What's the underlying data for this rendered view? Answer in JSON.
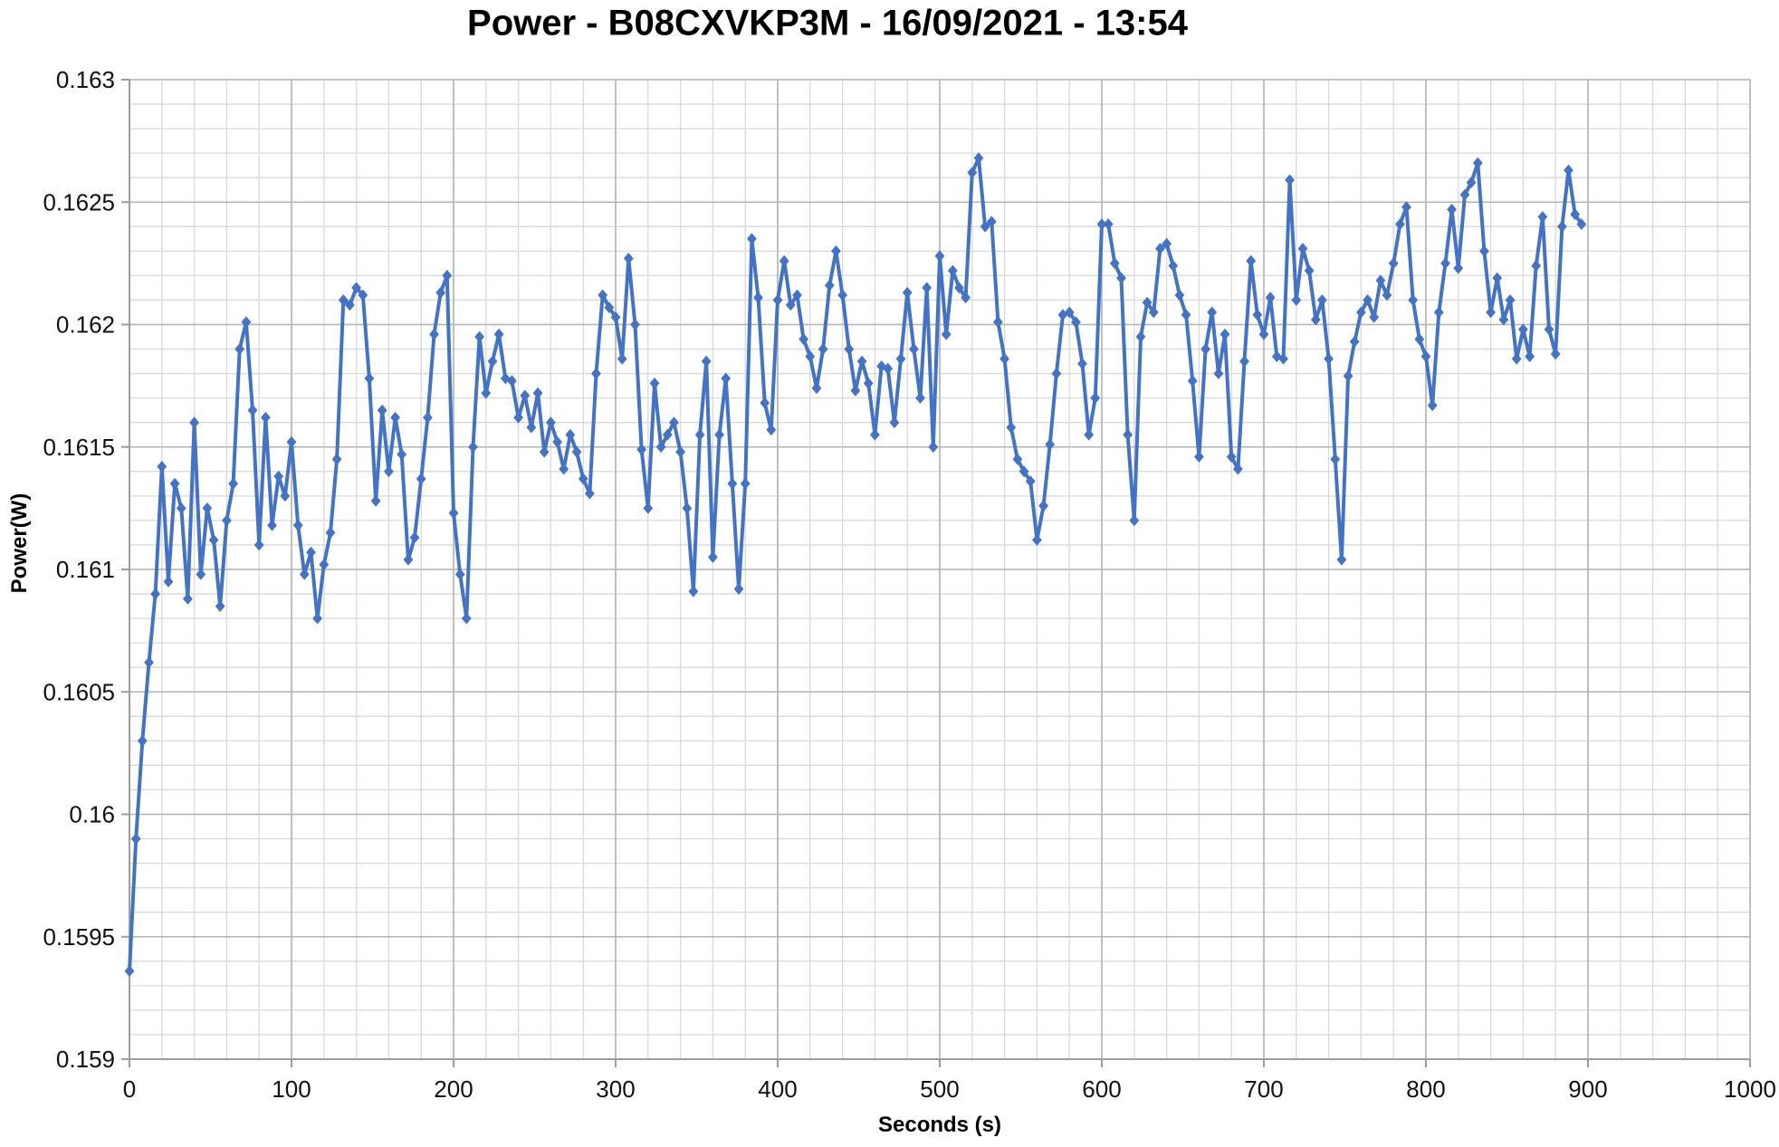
{
  "title": "Power - B08CXVKP3M - 16/09/2021 - 13:54",
  "chart_data": {
    "type": "line",
    "title": "Power - B08CXVKP3M - 16/09/2021 - 13:54",
    "xlabel": "Seconds (s)",
    "ylabel": "Power(W)",
    "grid": true,
    "legend": "none",
    "xlim": [
      0,
      1000
    ],
    "ylim": [
      0.159,
      0.163
    ],
    "x_ticks": [
      0,
      100,
      200,
      300,
      400,
      500,
      600,
      700,
      800,
      900,
      1000
    ],
    "y_ticks": [
      0.159,
      0.1595,
      0.16,
      0.1605,
      0.161,
      0.1615,
      0.162,
      0.1625,
      0.163
    ],
    "x_minor_step": 20,
    "y_minor_step": 0.0001,
    "series": [
      {
        "name": "Power",
        "marker": "diamond",
        "x_start": 0,
        "x_step": 4,
        "values": [
          0.15936,
          0.1599,
          0.1603,
          0.16062,
          0.1609,
          0.16142,
          0.16095,
          0.16135,
          0.16125,
          0.16088,
          0.1616,
          0.16098,
          0.16125,
          0.16112,
          0.16085,
          0.1612,
          0.16135,
          0.1619,
          0.16201,
          0.16165,
          0.1611,
          0.16162,
          0.16118,
          0.16138,
          0.1613,
          0.16152,
          0.16118,
          0.16098,
          0.16107,
          0.1608,
          0.16102,
          0.16115,
          0.16145,
          0.1621,
          0.16208,
          0.16215,
          0.16212,
          0.16178,
          0.16128,
          0.16165,
          0.1614,
          0.16162,
          0.16147,
          0.16104,
          0.16113,
          0.16137,
          0.16162,
          0.16196,
          0.16213,
          0.1622,
          0.16123,
          0.16098,
          0.1608,
          0.1615,
          0.16195,
          0.16172,
          0.16185,
          0.16196,
          0.16178,
          0.16177,
          0.16162,
          0.16171,
          0.16158,
          0.16172,
          0.16148,
          0.1616,
          0.16152,
          0.16141,
          0.16155,
          0.16148,
          0.16137,
          0.16131,
          0.1618,
          0.16212,
          0.16207,
          0.16203,
          0.16186,
          0.16227,
          0.162,
          0.16149,
          0.16125,
          0.16176,
          0.1615,
          0.16155,
          0.1616,
          0.16148,
          0.16125,
          0.16091,
          0.16155,
          0.16185,
          0.16105,
          0.16155,
          0.16178,
          0.16135,
          0.16092,
          0.16135,
          0.16235,
          0.16211,
          0.16168,
          0.16157,
          0.1621,
          0.16226,
          0.16208,
          0.16212,
          0.16194,
          0.16187,
          0.16174,
          0.1619,
          0.16216,
          0.1623,
          0.16212,
          0.1619,
          0.16173,
          0.16185,
          0.16176,
          0.16155,
          0.16183,
          0.16182,
          0.1616,
          0.16186,
          0.16213,
          0.1619,
          0.1617,
          0.16215,
          0.1615,
          0.16228,
          0.16196,
          0.16222,
          0.16215,
          0.16211,
          0.16262,
          0.16268,
          0.1624,
          0.16242,
          0.16201,
          0.16186,
          0.16158,
          0.16145,
          0.1614,
          0.16136,
          0.16112,
          0.16126,
          0.16151,
          0.1618,
          0.16204,
          0.16205,
          0.16201,
          0.16184,
          0.16155,
          0.1617,
          0.16241,
          0.16241,
          0.16225,
          0.16219,
          0.16155,
          0.1612,
          0.16195,
          0.16209,
          0.16205,
          0.16231,
          0.16233,
          0.16224,
          0.16212,
          0.16204,
          0.16177,
          0.16146,
          0.1619,
          0.16205,
          0.1618,
          0.16196,
          0.16146,
          0.16141,
          0.16185,
          0.16226,
          0.16204,
          0.16196,
          0.16211,
          0.16187,
          0.16186,
          0.16259,
          0.1621,
          0.16231,
          0.16222,
          0.16202,
          0.1621,
          0.16186,
          0.16145,
          0.16104,
          0.16179,
          0.16193,
          0.16205,
          0.1621,
          0.16203,
          0.16218,
          0.16212,
          0.16225,
          0.16241,
          0.16248,
          0.1621,
          0.16194,
          0.16187,
          0.16167,
          0.16205,
          0.16225,
          0.16247,
          0.16223,
          0.16253,
          0.16258,
          0.16266,
          0.1623,
          0.16205,
          0.16219,
          0.16202,
          0.1621,
          0.16186,
          0.16198,
          0.16187,
          0.16224,
          0.16244,
          0.16198,
          0.16188,
          0.1624,
          0.16263,
          0.16245,
          0.16241
        ]
      }
    ]
  },
  "styles": {
    "series_color": "#4472C4",
    "major_grid_color": "#b3b3b3",
    "minor_grid_color": "#d9d9d9",
    "axis_color": "#9d9d9d",
    "tick_text_color": "#111111",
    "background": "#ffffff"
  }
}
